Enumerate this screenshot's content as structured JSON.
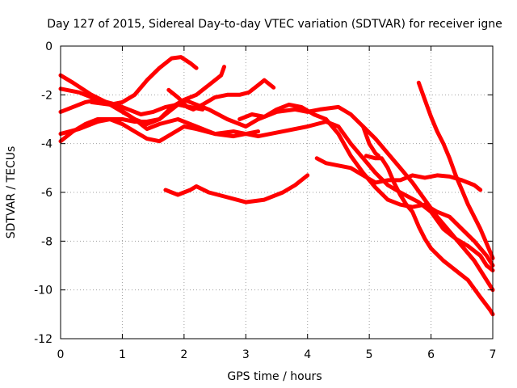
{
  "chart_data": {
    "type": "scatter",
    "title": "Day 127 of 2015, Sidereal Day-to-day VTEC variation (SDTVAR) for receiver igne",
    "xlabel": "GPS time / hours",
    "ylabel": "SDTVAR / TECUs",
    "xlim": [
      0,
      7
    ],
    "ylim": [
      -12,
      0
    ],
    "xticks": [
      0,
      1,
      2,
      3,
      4,
      5,
      6,
      7
    ],
    "yticks": [
      0,
      -2,
      -4,
      -6,
      -8,
      -10,
      -12
    ],
    "grid": true,
    "marker_color": "#ff0000",
    "series": [
      {
        "name": "s1",
        "points": [
          [
            0,
            -1.2
          ],
          [
            0.2,
            -1.5
          ],
          [
            0.5,
            -2.0
          ],
          [
            0.9,
            -2.5
          ],
          [
            1.2,
            -3.0
          ],
          [
            1.4,
            -3.4
          ],
          [
            1.6,
            -3.2
          ],
          [
            1.9,
            -3.0
          ],
          [
            2.2,
            -3.3
          ],
          [
            2.5,
            -3.6
          ],
          [
            2.8,
            -3.7
          ],
          [
            3.2,
            -3.5
          ]
        ]
      },
      {
        "name": "s2",
        "points": [
          [
            0,
            -1.75
          ],
          [
            0.3,
            -1.9
          ],
          [
            0.6,
            -2.2
          ],
          [
            0.9,
            -2.4
          ],
          [
            1.1,
            -2.6
          ],
          [
            1.3,
            -2.8
          ],
          [
            1.5,
            -2.7
          ],
          [
            1.7,
            -2.5
          ],
          [
            1.9,
            -2.4
          ],
          [
            2.1,
            -2.5
          ],
          [
            2.3,
            -2.6
          ]
        ]
      },
      {
        "name": "s3",
        "points": [
          [
            0,
            -2.7
          ],
          [
            0.2,
            -2.5
          ],
          [
            0.4,
            -2.3
          ],
          [
            0.6,
            -2.2
          ],
          [
            0.8,
            -2.4
          ],
          [
            1.0,
            -2.3
          ],
          [
            1.2,
            -2.0
          ],
          [
            1.4,
            -1.4
          ],
          [
            1.6,
            -0.9
          ],
          [
            1.8,
            -0.5
          ],
          [
            1.95,
            -0.45
          ],
          [
            2.1,
            -0.7
          ],
          [
            2.2,
            -0.9
          ]
        ]
      },
      {
        "name": "s4",
        "points": [
          [
            0,
            -3.6
          ],
          [
            0.3,
            -3.4
          ],
          [
            0.6,
            -3.1
          ],
          [
            0.8,
            -3.0
          ],
          [
            1.0,
            -3.2
          ],
          [
            1.2,
            -3.5
          ],
          [
            1.4,
            -3.8
          ],
          [
            1.6,
            -3.9
          ],
          [
            1.8,
            -3.6
          ],
          [
            2.0,
            -3.3
          ],
          [
            2.2,
            -3.4
          ],
          [
            2.5,
            -3.6
          ],
          [
            2.8,
            -3.5
          ],
          [
            3.2,
            -3.7
          ],
          [
            3.6,
            -3.5
          ],
          [
            4.0,
            -3.3
          ],
          [
            4.3,
            -3.1
          ],
          [
            4.5,
            -3.3
          ],
          [
            4.7,
            -4.0
          ],
          [
            4.9,
            -4.6
          ],
          [
            5.1,
            -5.2
          ],
          [
            5.3,
            -5.7
          ],
          [
            5.5,
            -6.0
          ],
          [
            5.8,
            -6.4
          ],
          [
            6.0,
            -6.8
          ],
          [
            6.2,
            -7.5
          ],
          [
            6.4,
            -7.9
          ],
          [
            6.6,
            -8.2
          ],
          [
            6.8,
            -8.6
          ],
          [
            6.9,
            -9.0
          ],
          [
            7.0,
            -9.2
          ]
        ]
      },
      {
        "name": "s5",
        "points": [
          [
            0,
            -3.9
          ],
          [
            0.2,
            -3.5
          ],
          [
            0.4,
            -3.2
          ],
          [
            0.6,
            -3.0
          ],
          [
            0.8,
            -3.0
          ],
          [
            1.0,
            -3.0
          ],
          [
            1.2,
            -3.1
          ],
          [
            1.4,
            -3.1
          ],
          [
            1.6,
            -3.0
          ],
          [
            1.8,
            -2.5
          ],
          [
            2.0,
            -2.2
          ],
          [
            2.2,
            -2.4
          ],
          [
            2.4,
            -2.6
          ],
          [
            2.7,
            -3.0
          ],
          [
            3.0,
            -3.3
          ],
          [
            3.2,
            -3.0
          ],
          [
            3.5,
            -2.7
          ],
          [
            3.8,
            -2.6
          ],
          [
            4.0,
            -2.7
          ],
          [
            4.2,
            -2.6
          ],
          [
            4.5,
            -2.5
          ],
          [
            4.7,
            -2.8
          ],
          [
            4.9,
            -3.3
          ],
          [
            5.1,
            -3.8
          ],
          [
            5.3,
            -4.4
          ],
          [
            5.5,
            -5.0
          ],
          [
            5.7,
            -5.6
          ],
          [
            5.9,
            -6.3
          ],
          [
            6.1,
            -7.0
          ],
          [
            6.3,
            -7.6
          ],
          [
            6.5,
            -8.2
          ],
          [
            6.7,
            -8.8
          ],
          [
            6.9,
            -9.6
          ],
          [
            7.0,
            -10.0
          ]
        ]
      },
      {
        "name": "s6",
        "points": [
          [
            0.5,
            -2.3
          ],
          [
            0.8,
            -2.4
          ],
          [
            1.0,
            -2.7
          ],
          [
            1.2,
            -3.0
          ],
          [
            1.4,
            -3.2
          ],
          [
            1.6,
            -3.0
          ],
          [
            1.8,
            -2.6
          ],
          [
            2.0,
            -2.2
          ],
          [
            2.2,
            -2.0
          ],
          [
            2.4,
            -1.6
          ],
          [
            2.6,
            -1.2
          ],
          [
            2.65,
            -0.85
          ]
        ]
      },
      {
        "name": "s7",
        "points": [
          [
            1.75,
            -1.8
          ],
          [
            1.9,
            -2.1
          ],
          [
            2.05,
            -2.5
          ],
          [
            2.15,
            -2.6
          ],
          [
            2.3,
            -2.4
          ],
          [
            2.5,
            -2.1
          ],
          [
            2.7,
            -2.0
          ],
          [
            2.9,
            -2.0
          ],
          [
            3.05,
            -1.9
          ],
          [
            3.2,
            -1.6
          ],
          [
            3.3,
            -1.4
          ],
          [
            3.45,
            -1.7
          ]
        ]
      },
      {
        "name": "s8",
        "points": [
          [
            1.7,
            -5.9
          ],
          [
            1.9,
            -6.1
          ],
          [
            2.1,
            -5.9
          ],
          [
            2.2,
            -5.75
          ],
          [
            2.4,
            -6.0
          ],
          [
            2.7,
            -6.2
          ],
          [
            3.0,
            -6.4
          ],
          [
            3.3,
            -6.3
          ],
          [
            3.6,
            -6.0
          ],
          [
            3.8,
            -5.7
          ],
          [
            4.0,
            -5.3
          ]
        ]
      },
      {
        "name": "s9",
        "points": [
          [
            2.9,
            -3.0
          ],
          [
            3.1,
            -2.8
          ],
          [
            3.3,
            -2.9
          ],
          [
            3.5,
            -2.6
          ],
          [
            3.7,
            -2.4
          ],
          [
            3.9,
            -2.5
          ],
          [
            4.1,
            -2.8
          ],
          [
            4.3,
            -3.0
          ],
          [
            4.5,
            -3.6
          ],
          [
            4.7,
            -4.5
          ],
          [
            4.9,
            -5.2
          ],
          [
            5.1,
            -5.8
          ],
          [
            5.3,
            -6.3
          ],
          [
            5.5,
            -6.5
          ],
          [
            5.7,
            -6.6
          ],
          [
            5.9,
            -6.5
          ],
          [
            6.1,
            -6.8
          ],
          [
            6.3,
            -7.0
          ],
          [
            6.5,
            -7.5
          ],
          [
            6.7,
            -8.0
          ],
          [
            6.9,
            -8.6
          ],
          [
            7.0,
            -9.0
          ]
        ]
      },
      {
        "name": "s10",
        "points": [
          [
            4.15,
            -4.6
          ],
          [
            4.3,
            -4.8
          ],
          [
            4.5,
            -4.9
          ],
          [
            4.7,
            -5.0
          ],
          [
            4.9,
            -5.3
          ],
          [
            5.1,
            -5.6
          ],
          [
            5.3,
            -5.5
          ],
          [
            5.5,
            -5.5
          ],
          [
            5.7,
            -5.3
          ],
          [
            5.9,
            -5.4
          ],
          [
            6.1,
            -5.3
          ],
          [
            6.3,
            -5.35
          ],
          [
            6.5,
            -5.5
          ],
          [
            6.7,
            -5.7
          ],
          [
            6.8,
            -5.9
          ]
        ]
      },
      {
        "name": "s11",
        "points": [
          [
            4.95,
            -4.5
          ],
          [
            5.1,
            -4.6
          ],
          [
            5.2,
            -4.6
          ],
          [
            5.3,
            -5.0
          ],
          [
            5.4,
            -5.6
          ],
          [
            5.5,
            -6.1
          ],
          [
            5.6,
            -6.5
          ],
          [
            5.7,
            -6.8
          ],
          [
            5.8,
            -7.4
          ],
          [
            5.9,
            -7.9
          ],
          [
            6.0,
            -8.3
          ],
          [
            6.2,
            -8.8
          ],
          [
            6.4,
            -9.2
          ],
          [
            6.6,
            -9.6
          ],
          [
            6.8,
            -10.3
          ],
          [
            6.95,
            -10.8
          ],
          [
            7.0,
            -11.0
          ]
        ]
      },
      {
        "name": "s12",
        "points": [
          [
            5.8,
            -1.5
          ],
          [
            5.9,
            -2.2
          ],
          [
            6.0,
            -2.9
          ],
          [
            6.1,
            -3.5
          ],
          [
            6.2,
            -4.0
          ],
          [
            6.3,
            -4.6
          ],
          [
            6.4,
            -5.3
          ],
          [
            6.5,
            -5.9
          ],
          [
            6.6,
            -6.5
          ],
          [
            6.7,
            -7.0
          ],
          [
            6.8,
            -7.5
          ],
          [
            6.9,
            -8.1
          ],
          [
            7.0,
            -8.7
          ]
        ]
      },
      {
        "name": "s13",
        "points": [
          [
            4.9,
            -3.3
          ],
          [
            5.0,
            -4.0
          ],
          [
            5.1,
            -4.4
          ],
          [
            5.15,
            -4.5
          ]
        ]
      }
    ]
  }
}
